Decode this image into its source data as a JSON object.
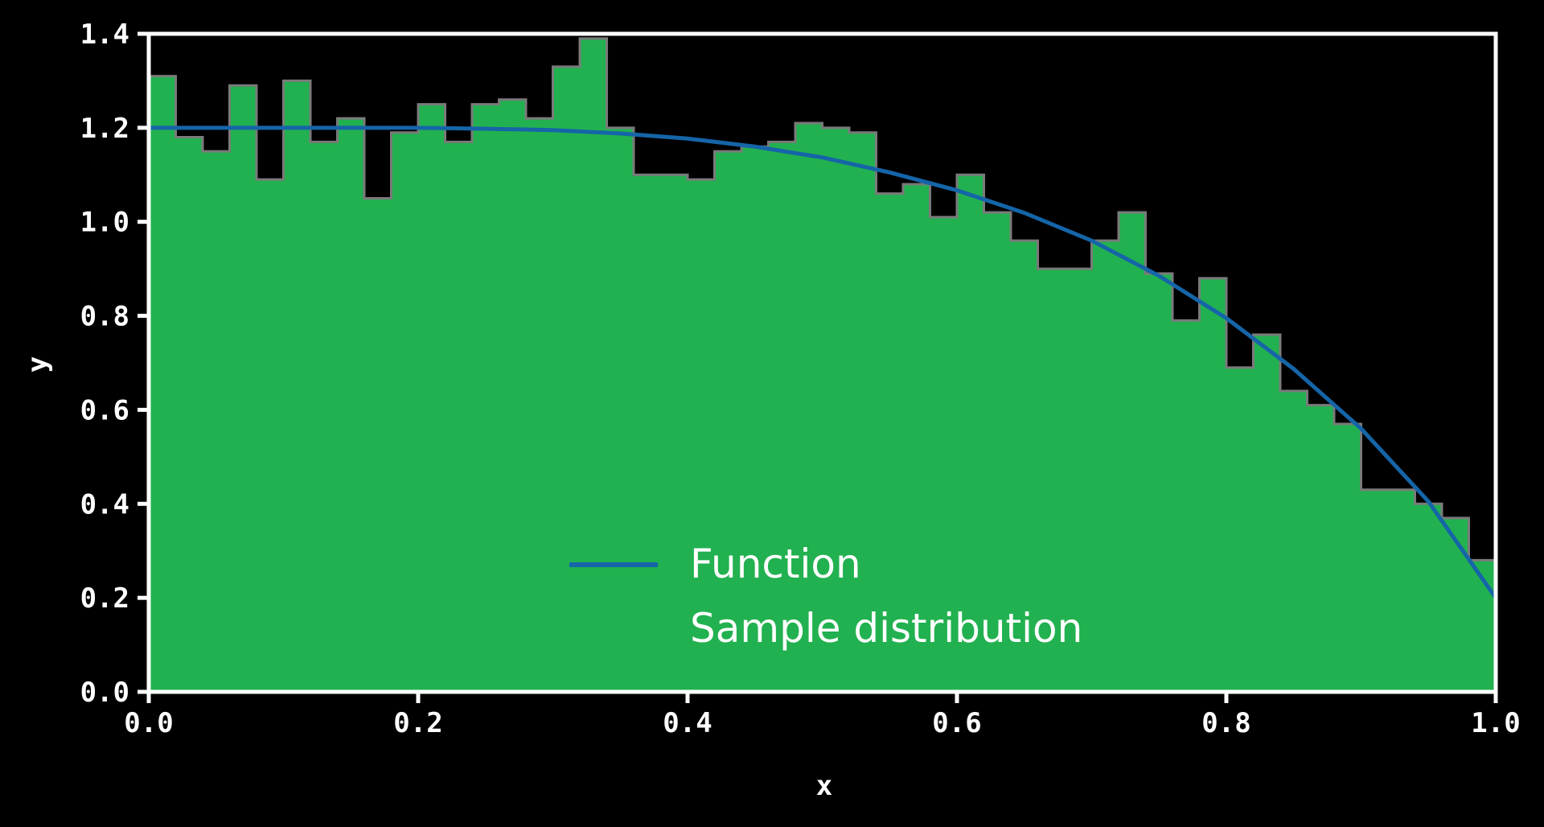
{
  "chart_data": {
    "type": "bar",
    "title": "",
    "xlabel": "x",
    "ylabel": "y",
    "xlim": [
      0.0,
      1.0
    ],
    "ylim": [
      0.0,
      1.4
    ],
    "xticks": [
      "0.0",
      "0.2",
      "0.4",
      "0.6",
      "0.8",
      "1.0"
    ],
    "yticks": [
      "0.0",
      "0.2",
      "0.4",
      "0.6",
      "0.8",
      "1.0",
      "1.2",
      "1.4"
    ],
    "grid": false,
    "legend_position": "lower-center",
    "colors": {
      "background": "#000000",
      "axes": "#ffffff",
      "histogram": "#22b150",
      "histogram_edge": "#7a7a7a",
      "function": "#1565a8"
    },
    "series": [
      {
        "name": "Function",
        "type": "line",
        "formula_points": {
          "x": [
            0.0,
            0.05,
            0.1,
            0.15,
            0.2,
            0.25,
            0.3,
            0.35,
            0.4,
            0.45,
            0.5,
            0.55,
            0.6,
            0.65,
            0.7,
            0.75,
            0.8,
            0.85,
            0.9,
            0.95,
            1.0
          ],
          "y": [
            1.2,
            1.2,
            1.2,
            1.2,
            1.2,
            1.198,
            1.195,
            1.188,
            1.177,
            1.16,
            1.137,
            1.105,
            1.067,
            1.019,
            0.96,
            0.885,
            0.795,
            0.687,
            0.56,
            0.405,
            0.2
          ]
        }
      },
      {
        "name": "Sample distribution",
        "type": "histogram",
        "bin_edges": [
          0.0,
          0.02,
          0.04,
          0.06,
          0.08,
          0.1,
          0.12,
          0.14,
          0.16,
          0.18,
          0.2,
          0.22,
          0.24,
          0.26,
          0.28,
          0.3,
          0.32,
          0.34,
          0.36,
          0.38,
          0.4,
          0.42,
          0.44,
          0.46,
          0.48,
          0.5,
          0.52,
          0.54,
          0.56,
          0.58,
          0.6,
          0.62,
          0.64,
          0.66,
          0.68,
          0.7,
          0.72,
          0.74,
          0.76,
          0.78,
          0.8,
          0.82,
          0.84,
          0.86,
          0.88,
          0.9,
          0.92,
          0.94,
          0.96,
          0.98,
          1.0
        ],
        "values": [
          1.31,
          1.18,
          1.15,
          1.29,
          1.09,
          1.3,
          1.17,
          1.22,
          1.05,
          1.19,
          1.25,
          1.17,
          1.25,
          1.26,
          1.22,
          1.33,
          1.39,
          1.2,
          1.1,
          1.1,
          1.09,
          1.15,
          1.16,
          1.17,
          1.21,
          1.2,
          1.19,
          1.06,
          1.08,
          1.01,
          1.1,
          1.02,
          0.96,
          0.9,
          0.9,
          0.96,
          1.02,
          0.89,
          0.79,
          0.88,
          0.69,
          0.76,
          0.64,
          0.61,
          0.57,
          0.43,
          0.43,
          0.4,
          0.37,
          0.28
        ]
      }
    ]
  }
}
